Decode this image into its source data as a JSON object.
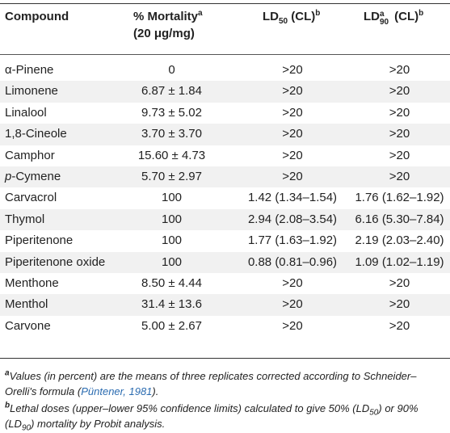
{
  "headers": {
    "compound": "Compound",
    "mortality": "% Mortality",
    "mortality_sup": "a",
    "mortality_dose": "(20 μg/mg)",
    "ld50_pre": "LD",
    "ld50_sub": "50",
    "ld50_post": " (CL)",
    "ld50_sup": "b",
    "ld90_pre": "LD",
    "ld90_supa": "a",
    "ld90_sub": "90",
    "ld90_post": " (CL)",
    "ld90_sup": "b"
  },
  "rows": [
    {
      "compound": "α-Pinene",
      "mortality": "0",
      "ld50": ">20",
      "ld90": ">20"
    },
    {
      "compound": "Limonene",
      "mortality": "6.87 ± 1.84",
      "ld50": ">20",
      "ld90": ">20"
    },
    {
      "compound": "Linalool",
      "mortality": "9.73 ± 5.02",
      "ld50": ">20",
      "ld90": ">20"
    },
    {
      "compound": "1,8-Cineole",
      "mortality": "3.70 ± 3.70",
      "ld50": ">20",
      "ld90": ">20"
    },
    {
      "compound": "Camphor",
      "mortality": "15.60 ± 4.73",
      "ld50": ">20",
      "ld90": ">20"
    },
    {
      "compound_prefix": "p",
      "compound": "-Cymene",
      "mortality": "5.70 ± 2.97",
      "ld50": ">20",
      "ld90": ">20"
    },
    {
      "compound": "Carvacrol",
      "mortality": "100",
      "ld50": "1.42 (1.34–1.54)",
      "ld90": "1.76 (1.62–1.92)"
    },
    {
      "compound": "Thymol",
      "mortality": "100",
      "ld50": "2.94 (2.08–3.54)",
      "ld90": "6.16 (5.30–7.84)"
    },
    {
      "compound": "Piperitenone",
      "mortality": "100",
      "ld50": "1.77 (1.63–1.92)",
      "ld90": "2.19 (2.03–2.40)"
    },
    {
      "compound": "Piperitenone oxide",
      "mortality": "100",
      "ld50": "0.88 (0.81–0.96)",
      "ld90": "1.09 (1.02–1.19)"
    },
    {
      "compound": "Menthone",
      "mortality": "8.50 ± 4.44",
      "ld50": ">20",
      "ld90": ">20"
    },
    {
      "compound": "Menthol",
      "mortality": "31.4 ± 13.6",
      "ld50": ">20",
      "ld90": ">20"
    },
    {
      "compound": "Carvone",
      "mortality": "5.00 ± 2.67",
      "ld50": ">20",
      "ld90": ">20"
    }
  ],
  "footnotes": {
    "a_mark": "a",
    "a_text_1": "Values (in percent) are the means of three replicates corrected according to Schneider–Orelli's formula (",
    "a_cite": "Püntener, 1981",
    "a_text_2": ").",
    "b_mark": "b",
    "b_text_1": "Lethal doses (upper–lower 95% confidence limits) calculated to give 50% (LD",
    "b_sub1": "50",
    "b_text_2": ") or 90% (LD",
    "b_sub2": "90",
    "b_text_3": ") mortality by Probit analysis."
  }
}
